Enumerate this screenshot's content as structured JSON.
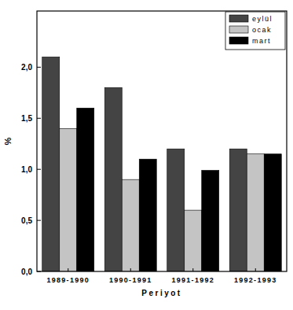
{
  "chart_data": {
    "type": "bar",
    "x_label": "Periyot",
    "y_label": "%",
    "categories": [
      "1989-1990",
      "1990-1991",
      "1991-1992",
      "1992-1993"
    ],
    "series": [
      {
        "name": "eylül",
        "color": "#444444",
        "values": [
          2.1,
          1.8,
          1.2,
          1.2
        ]
      },
      {
        "name": "ocak",
        "color": "#c4c4c4",
        "values": [
          1.4,
          0.9,
          0.6,
          1.15
        ]
      },
      {
        "name": "mart",
        "color": "#000000",
        "values": [
          1.6,
          1.1,
          0.99,
          1.15
        ]
      }
    ],
    "ylim": [
      0,
      2.55
    ],
    "yticks": [
      {
        "value": 0,
        "label": "0,0"
      },
      {
        "value": 0.5,
        "label": "0,5"
      },
      {
        "value": 1,
        "label": "1,0"
      },
      {
        "value": 1.5,
        "label": "1,5"
      },
      {
        "value": 2,
        "label": "2,0"
      }
    ],
    "legend": "upper right",
    "grid": false
  }
}
